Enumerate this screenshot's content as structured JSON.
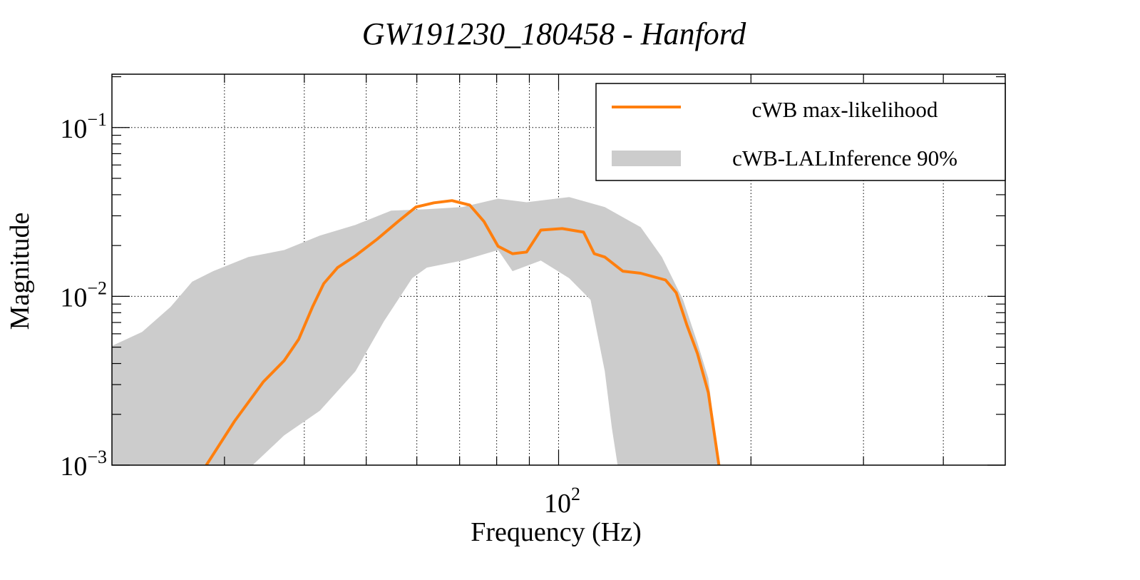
{
  "chart_data": {
    "type": "line",
    "title": "GW191230_180458 - Hanford",
    "xlabel": "Frequency (Hz)",
    "ylabel": "Magnitude",
    "xscale": "log",
    "yscale": "log",
    "xlim": [
      20,
      500
    ],
    "ylim": [
      0.001,
      0.207
    ],
    "grid": true,
    "x_tick_labels": [
      {
        "value": 100,
        "base": "10",
        "exp": "2"
      }
    ],
    "y_tick_labels": [
      {
        "value": 0.1,
        "base": "10",
        "exp": "−1"
      },
      {
        "value": 0.01,
        "base": "10",
        "exp": "−2"
      },
      {
        "value": 0.001,
        "base": "10",
        "exp": "−3"
      }
    ],
    "legend": {
      "placement": "top-right",
      "entries": [
        {
          "label": "cWB max-likelihood",
          "style": "line",
          "color": "#ff7f0e"
        },
        {
          "label": "cWB-LALInference 90%",
          "style": "band",
          "color": "#cccccc"
        }
      ]
    },
    "series": [
      {
        "name": "cWB max-likelihood",
        "color": "#ff7f0e",
        "x": [
          28.1,
          31.1,
          34.5,
          37.2,
          39.2,
          41.2,
          42.9,
          45.1,
          48.1,
          52.0,
          56.1,
          59.8,
          63.8,
          68.1,
          72.6,
          76.4,
          80.4,
          84.7,
          89.1,
          93.8,
          101.3,
          109.4,
          113.7,
          118.1,
          126.0,
          134.4,
          147.0,
          152.8,
          158.7,
          164.9,
          171.5,
          178.2
        ],
        "y": [
          0.001,
          0.00182,
          0.00311,
          0.00416,
          0.00557,
          0.00865,
          0.0119,
          0.0148,
          0.0174,
          0.0218,
          0.0278,
          0.0338,
          0.0358,
          0.0369,
          0.0347,
          0.0278,
          0.0198,
          0.0179,
          0.0183,
          0.0247,
          0.0252,
          0.024,
          0.0179,
          0.0171,
          0.0141,
          0.0137,
          0.0125,
          0.0105,
          0.00678,
          0.00459,
          0.00269,
          0.001
        ]
      },
      {
        "name": "cWB-LALInference 90%",
        "color": "#cccccc",
        "type": "band",
        "upper": {
          "x": [
            19.95,
            22.3,
            24.7,
            26.7,
            28.8,
            32.7,
            37.2,
            42.3,
            48.1,
            54.7,
            62.2,
            70.7,
            80.4,
            89.1,
            103.9,
            118.1,
            134.4,
            145.1,
            156.6,
            164.9,
            171.5,
            178.2
          ],
          "y": [
            0.00506,
            0.00616,
            0.00865,
            0.0122,
            0.0141,
            0.0171,
            0.0188,
            0.0229,
            0.0265,
            0.0322,
            0.0328,
            0.0338,
            0.0379,
            0.0361,
            0.0387,
            0.0338,
            0.0257,
            0.0171,
            0.00953,
            0.00531,
            0.00327,
            0.001
          ]
        },
        "lower": {
          "x": [
            19.95,
            33.2,
            37.2,
            42.3,
            48.1,
            53.3,
            59.0,
            62.2,
            70.7,
            80.4,
            84.7,
            93.8,
            103.9,
            112.2,
            118.1,
            121.2,
            123.7
          ],
          "y": [
            0.001,
            0.001,
            0.0015,
            0.0021,
            0.0036,
            0.00712,
            0.0128,
            0.0148,
            0.0163,
            0.0188,
            0.0141,
            0.0163,
            0.0128,
            0.00953,
            0.0036,
            0.00165,
            0.001
          ]
        }
      }
    ]
  }
}
